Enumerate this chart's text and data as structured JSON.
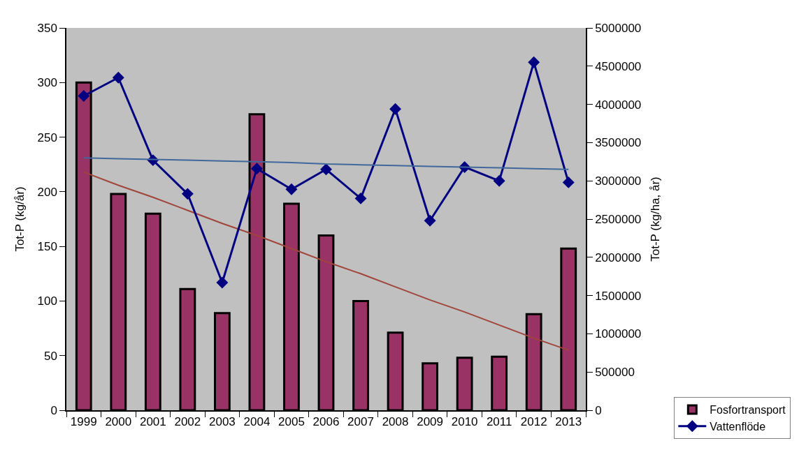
{
  "chart_data": {
    "type": "bar",
    "ylabel": "Tot-P (kg/år)",
    "y2label": "Tot-P (kg/ha, år)",
    "categories": [
      "1999",
      "2000",
      "2001",
      "2002",
      "2003",
      "2004",
      "2005",
      "2006",
      "2007",
      "2008",
      "2009",
      "2010",
      "2011",
      "2012",
      "2013"
    ],
    "series": [
      {
        "name": "Fosfortransport",
        "color": "#993366",
        "values": [
          300,
          198,
          180,
          111,
          89,
          271,
          189,
          160,
          100,
          71,
          43,
          48,
          49,
          88,
          148
        ]
      },
      {
        "name": "Vattenflöde",
        "type": "line",
        "axis": "y2",
        "color": "#000080",
        "marker": "diamond",
        "values": [
          4110000,
          4350000,
          3270000,
          2830000,
          1670000,
          3160000,
          2890000,
          3150000,
          2770000,
          3940000,
          2480000,
          3180000,
          3000000,
          4550000,
          2980000
        ]
      },
      {
        "type": "line",
        "color": "#a0453c",
        "marker": "none",
        "values": [
          218,
          206,
          195,
          183,
          171,
          160,
          148,
          136,
          125,
          113,
          101,
          90,
          78,
          66,
          55
        ]
      },
      {
        "type": "line",
        "axis": "y2",
        "color": "#41689c",
        "marker": "none",
        "values": [
          3300000,
          3290000,
          3280000,
          3270000,
          3260000,
          3250000,
          3240000,
          3220000,
          3210000,
          3200000,
          3190000,
          3180000,
          3170000,
          3160000,
          3150000
        ]
      }
    ],
    "ylim": [
      0,
      350
    ],
    "yticks": [
      0,
      50,
      100,
      150,
      200,
      250,
      300,
      350
    ],
    "y2lim": [
      0,
      5000000
    ],
    "y2ticks": [
      0,
      500000,
      1000000,
      1500000,
      2000000,
      2500000,
      3000000,
      3500000,
      4000000,
      4500000,
      5000000
    ],
    "legend": "bottom right"
  }
}
